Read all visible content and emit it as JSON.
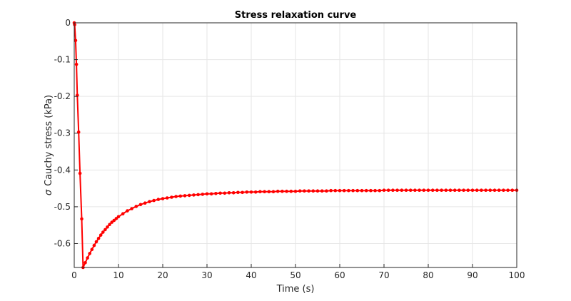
{
  "chart_data": {
    "type": "line",
    "title": "Stress relaxation curve",
    "xlabel": "Time (s)",
    "ylabel_symbol": "σ",
    "ylabel": "Cauchy stress (kPa)",
    "xlim": [
      0,
      100
    ],
    "ylim": [
      -0.665,
      0
    ],
    "x_ticks": [
      0,
      10,
      20,
      30,
      40,
      50,
      60,
      70,
      80,
      90,
      100
    ],
    "x_tick_labels": [
      "0",
      "10",
      "20",
      "30",
      "40",
      "50",
      "60",
      "70",
      "80",
      "90",
      "100"
    ],
    "y_ticks": [
      0,
      -0.1,
      -0.2,
      -0.3,
      -0.4,
      -0.5,
      -0.6
    ],
    "y_tick_labels": [
      "0",
      "-0.1",
      "-0.2",
      "-0.3",
      "-0.4",
      "-0.5",
      "-0.6"
    ],
    "grid": true,
    "series": [
      {
        "color": "#ff0000",
        "marker": "circle",
        "x": [
          0,
          0.1,
          0.3,
          0.5,
          0.7,
          1.0,
          1.3,
          1.7,
          2.0,
          2.5,
          3.0,
          3.5,
          4.0,
          4.5,
          5.0,
          5.5,
          6.0,
          6.5,
          7.0,
          7.5,
          8.0,
          8.5,
          9.0,
          9.5,
          10.0,
          11.0,
          12.0,
          13.0,
          14.0,
          15.0,
          16.0,
          17.0,
          18.0,
          19.0,
          20.0,
          21.0,
          22.0,
          23.0,
          24.0,
          25.0,
          26.0,
          27.0,
          28.0,
          29.0,
          30.0,
          31.0,
          32.0,
          33.0,
          34.0,
          35.0,
          36.0,
          37.0,
          38.0,
          39.0,
          40.0,
          41.0,
          42.0,
          43.0,
          44.0,
          45.0,
          46.0,
          47.0,
          48.0,
          49.0,
          50.0,
          51.0,
          52.0,
          53.0,
          54.0,
          55.0,
          56.0,
          57.0,
          58.0,
          59.0,
          60.0,
          61.0,
          62.0,
          63.0,
          64.0,
          65.0,
          66.0,
          67.0,
          68.0,
          69.0,
          70.0,
          71.0,
          72.0,
          73.0,
          74.0,
          75.0,
          76.0,
          77.0,
          78.0,
          79.0,
          80.0,
          81.0,
          82.0,
          83.0,
          84.0,
          85.0,
          86.0,
          87.0,
          88.0,
          89.0,
          90.0,
          91.0,
          92.0,
          93.0,
          94.0,
          95.0,
          96.0,
          97.0,
          98.0,
          99.0,
          100.0
        ],
        "y": [
          0,
          -0.005,
          -0.048,
          -0.113,
          -0.197,
          -0.297,
          -0.409,
          -0.533,
          -0.665,
          -0.652,
          -0.639,
          -0.627,
          -0.616,
          -0.605,
          -0.595,
          -0.586,
          -0.577,
          -0.569,
          -0.562,
          -0.555,
          -0.548,
          -0.542,
          -0.537,
          -0.532,
          -0.527,
          -0.519,
          -0.511,
          -0.505,
          -0.499,
          -0.494,
          -0.49,
          -0.486,
          -0.483,
          -0.48,
          -0.478,
          -0.476,
          -0.474,
          -0.472,
          -0.471,
          -0.47,
          -0.469,
          -0.468,
          -0.467,
          -0.466,
          -0.465,
          -0.465,
          -0.464,
          -0.463,
          -0.463,
          -0.462,
          -0.462,
          -0.461,
          -0.461,
          -0.46,
          -0.46,
          -0.46,
          -0.459,
          -0.459,
          -0.459,
          -0.459,
          -0.458,
          -0.458,
          -0.458,
          -0.458,
          -0.458,
          -0.457,
          -0.457,
          -0.457,
          -0.457,
          -0.457,
          -0.457,
          -0.457,
          -0.456,
          -0.456,
          -0.456,
          -0.456,
          -0.456,
          -0.456,
          -0.456,
          -0.456,
          -0.456,
          -0.456,
          -0.456,
          -0.456,
          -0.455,
          -0.455,
          -0.455,
          -0.455,
          -0.455,
          -0.455,
          -0.455,
          -0.455,
          -0.455,
          -0.455,
          -0.455,
          -0.455,
          -0.455,
          -0.455,
          -0.455,
          -0.455,
          -0.455,
          -0.455,
          -0.455,
          -0.455,
          -0.455,
          -0.455,
          -0.455,
          -0.455,
          -0.455,
          -0.455,
          -0.455,
          -0.455,
          -0.455,
          -0.455,
          -0.455
        ]
      }
    ]
  }
}
